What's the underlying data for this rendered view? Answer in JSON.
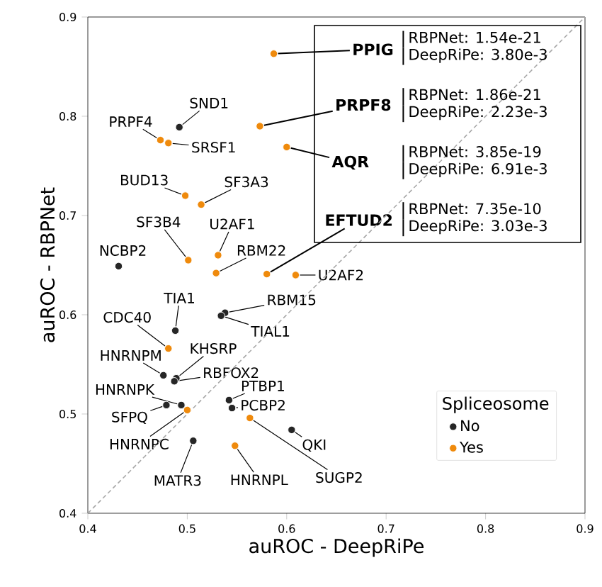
{
  "chart_data": {
    "type": "scatter",
    "xlabel": "auROC - DeepRiPe",
    "ylabel": "auROC - RBPNet",
    "legend_title": "Spliceosome",
    "xlim": [
      0.4,
      0.9
    ],
    "ylim": [
      0.4,
      0.9
    ],
    "xticks": [
      0.4,
      0.5,
      0.6,
      0.7,
      0.8,
      0.9
    ],
    "yticks": [
      0.4,
      0.5,
      0.6,
      0.7,
      0.8,
      0.9
    ],
    "grid": false,
    "legend": "bottom right",
    "marker": "circle",
    "series": [
      {
        "name": "No",
        "color": "#262626",
        "x": [
          0.492,
          0.431,
          0.488,
          0.538,
          0.534,
          0.476,
          0.489,
          0.487,
          0.494,
          0.479,
          0.506,
          0.542,
          0.545,
          0.605
        ],
        "values": [
          0.789,
          0.649,
          0.584,
          0.602,
          0.599,
          0.539,
          0.536,
          0.533,
          0.509,
          0.509,
          0.473,
          0.514,
          0.506,
          0.484
        ]
      },
      {
        "name": "Yes",
        "color": "#ef8a0c",
        "x": [
          0.587,
          0.573,
          0.6,
          0.473,
          0.481,
          0.498,
          0.514,
          0.501,
          0.531,
          0.529,
          0.58,
          0.609,
          0.481,
          0.5,
          0.563,
          0.548
        ],
        "values": [
          0.863,
          0.79,
          0.769,
          0.776,
          0.773,
          0.72,
          0.711,
          0.655,
          0.66,
          0.642,
          0.641,
          0.64,
          0.566,
          0.504,
          0.496,
          0.468
        ]
      },
      {
        "type": "line",
        "color": "#a8a8a8",
        "line_style": "dashed",
        "marker": "none",
        "x": [
          0.4,
          0.9
        ],
        "values": [
          0.4,
          0.9
        ]
      }
    ],
    "annotations": [
      {
        "text": "PPIG",
        "x": 0.587,
        "y": 0.863
      },
      {
        "text": "PRPF8",
        "x": 0.573,
        "y": 0.79
      },
      {
        "text": "AQR",
        "x": 0.6,
        "y": 0.769
      },
      {
        "text": "EFTUD2",
        "x": 0.58,
        "y": 0.641
      },
      "RBPNet: 1.54e-21",
      "DeepRiPe: 3.80e-3",
      "RBPNet: 1.86e-21",
      "DeepRiPe: 2.23e-3",
      "RBPNet: 3.85e-19",
      "DeepRiPe: 6.91e-3",
      "RBPNet: 7.35e-10",
      "DeepRiPe: 3.03e-3",
      {
        "text": "SND1",
        "x": 0.492,
        "y": 0.789
      },
      {
        "text": "PRPF4",
        "x": 0.473,
        "y": 0.776
      },
      {
        "text": "SRSF1",
        "x": 0.481,
        "y": 0.773
      },
      {
        "text": "BUD13",
        "x": 0.498,
        "y": 0.72
      },
      {
        "text": "SF3A3",
        "x": 0.514,
        "y": 0.711
      },
      {
        "text": "SF3B4",
        "x": 0.501,
        "y": 0.655
      },
      {
        "text": "U2AF1",
        "x": 0.531,
        "y": 0.66
      },
      {
        "text": "RBM22",
        "x": 0.529,
        "y": 0.642
      },
      {
        "text": "NCBP2",
        "x": 0.431,
        "y": 0.649
      },
      {
        "text": "U2AF2",
        "x": 0.609,
        "y": 0.64
      },
      {
        "text": "TIA1",
        "x": 0.488,
        "y": 0.584
      },
      {
        "text": "RBM15",
        "x": 0.538,
        "y": 0.602
      },
      {
        "text": "TIAL1",
        "x": 0.534,
        "y": 0.599
      },
      {
        "text": "CDC40",
        "x": 0.481,
        "y": 0.566
      },
      {
        "text": "HNRNPM",
        "x": 0.476,
        "y": 0.539
      },
      {
        "text": "KHSRP",
        "x": 0.489,
        "y": 0.536
      },
      {
        "text": "RBFOX2",
        "x": 0.487,
        "y": 0.533
      },
      {
        "text": "HNRNPK",
        "x": 0.494,
        "y": 0.509
      },
      {
        "text": "SFPQ",
        "x": 0.479,
        "y": 0.509
      },
      {
        "text": "HNRNPC",
        "x": 0.5,
        "y": 0.504
      },
      {
        "text": "MATR3",
        "x": 0.506,
        "y": 0.473
      },
      {
        "text": "PTBP1",
        "x": 0.542,
        "y": 0.514
      },
      {
        "text": "PCBP2",
        "x": 0.545,
        "y": 0.506
      },
      {
        "text": "SUGP2",
        "x": 0.563,
        "y": 0.496
      },
      {
        "text": "QKI",
        "x": 0.605,
        "y": 0.484
      },
      {
        "text": "HNRNPL",
        "x": 0.548,
        "y": 0.468
      }
    ]
  }
}
